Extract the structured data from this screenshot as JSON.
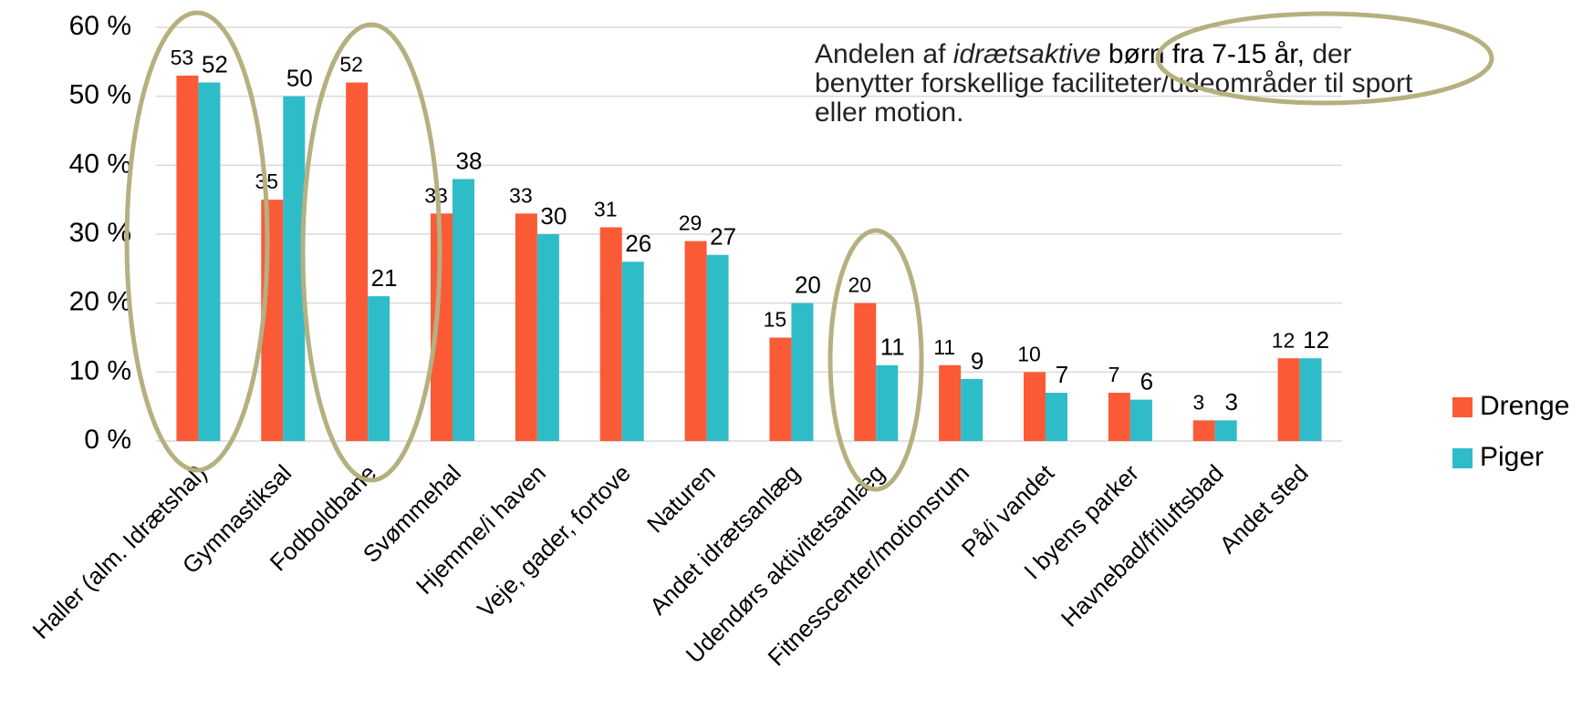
{
  "chart_data": {
    "type": "bar",
    "annotation": {
      "parts": [
        "Andelen af",
        "idrætsaktive",
        "børn fra 7-15 år,",
        "der benytter forskellige faciliteter/udeområder til sport eller motion."
      ]
    },
    "categories": [
      "Haller (alm. Idrætshal)",
      "Gymnastiksal",
      "Fodboldbane",
      "Svømmehal",
      "Hjemme/i haven",
      "Veje, gader, fortove",
      "Naturen",
      "Andet idrætsanlæg",
      "Udendørs aktivitetsanlæg",
      "Fitnesscenter/motionsrum",
      "På/i vandet",
      "I byens parker",
      "Havnebad/friluftsbad",
      "Andet sted"
    ],
    "series": [
      {
        "name": "Drenge",
        "color": "#fb5a37",
        "values": [
          53,
          35,
          52,
          33,
          33,
          31,
          29,
          15,
          20,
          11,
          10,
          7,
          3,
          12
        ]
      },
      {
        "name": "Piger",
        "color": "#2fbcc9",
        "values": [
          52,
          50,
          21,
          38,
          30,
          26,
          27,
          20,
          11,
          9,
          7,
          6,
          3,
          12
        ]
      }
    ],
    "ylim": [
      0,
      60
    ],
    "yticks": [
      {
        "value": 0,
        "label": "0 %"
      },
      {
        "value": 10,
        "label": "10 %"
      },
      {
        "value": 20,
        "label": "20 %"
      },
      {
        "value": 30,
        "label": "30 %"
      },
      {
        "value": 40,
        "label": "40 %"
      },
      {
        "value": 50,
        "label": "50 %"
      },
      {
        "value": 60,
        "label": "60 %"
      }
    ],
    "grid": true,
    "legend": "right"
  }
}
